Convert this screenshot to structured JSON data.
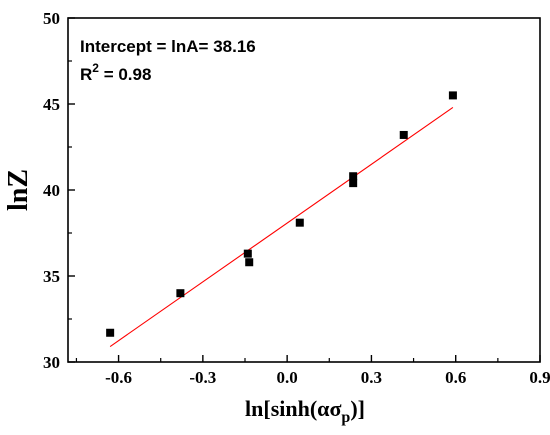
{
  "chart_data": {
    "type": "scatter",
    "xlabel_main": "ln[sinh(ασ",
    "xlabel_sub": "p",
    "xlabel_end": ")]",
    "ylabel": "lnZ",
    "xlim": [
      -0.78,
      0.9
    ],
    "ylim": [
      30,
      50
    ],
    "xticks": [
      -0.6,
      -0.3,
      0.0,
      0.3,
      0.6,
      0.9
    ],
    "xtick_labels": [
      "-0.6",
      "-0.3",
      "0.0",
      "0.3",
      "0.6",
      "0.9"
    ],
    "yticks": [
      30,
      35,
      40,
      45,
      50
    ],
    "ytick_labels": [
      "30",
      "35",
      "40",
      "45",
      "50"
    ],
    "grid": false,
    "series": [
      {
        "marker": "square",
        "color": "#000000",
        "points": [
          {
            "x": -0.63,
            "y": 31.7
          },
          {
            "x": -0.38,
            "y": 34.0
          },
          {
            "x": -0.14,
            "y": 36.3
          },
          {
            "x": -0.135,
            "y": 35.8
          },
          {
            "x": 0.045,
            "y": 38.1
          },
          {
            "x": 0.235,
            "y": 40.8
          },
          {
            "x": 0.235,
            "y": 40.4
          },
          {
            "x": 0.415,
            "y": 43.2
          },
          {
            "x": 0.59,
            "y": 45.5
          }
        ]
      }
    ],
    "fit_line": {
      "color": "#ff0000",
      "x": [
        -0.63,
        0.59
      ],
      "y": [
        30.9,
        44.8
      ]
    },
    "annotations": {
      "intercept": "Intercept = lnA= 38.16",
      "r2_base": "R",
      "r2_sup": "2",
      "r2_value": " = 0.98"
    }
  }
}
